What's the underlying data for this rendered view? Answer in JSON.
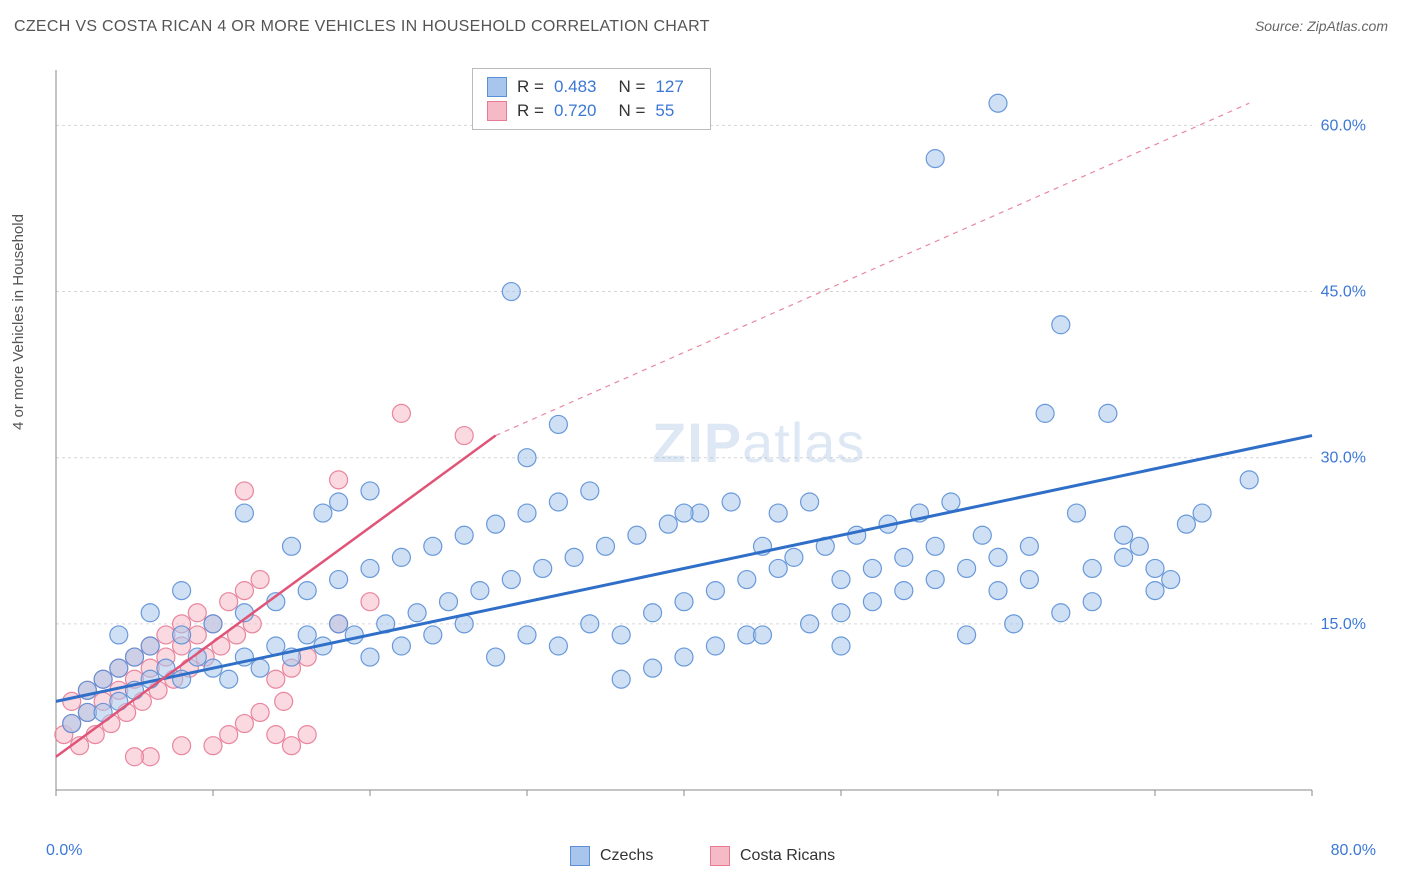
{
  "title": "CZECH VS COSTA RICAN 4 OR MORE VEHICLES IN HOUSEHOLD CORRELATION CHART",
  "source": "Source: ZipAtlas.com",
  "y_axis_label": "4 or more Vehicles in Household",
  "watermark_a": "ZIP",
  "watermark_b": "atlas",
  "legend_rn": {
    "row1": {
      "R_label": "R =",
      "R": "0.483",
      "N_label": "N =",
      "N": "127",
      "fill": "#a8c6ec",
      "stroke": "#5b8fd6"
    },
    "row2": {
      "R_label": "R =",
      "R": "0.720",
      "N_label": "N =",
      "N": "55",
      "fill": "#f6b9c6",
      "stroke": "#e77a95"
    }
  },
  "legend_bottom": {
    "series1": {
      "label": "Czechs",
      "fill": "#a8c6ec",
      "stroke": "#5b8fd6"
    },
    "series2": {
      "label": "Costa Ricans",
      "fill": "#f6b9c6",
      "stroke": "#e77a95"
    }
  },
  "chart": {
    "type": "scatter",
    "background_color": "#ffffff",
    "grid_color": "#d6d6d6",
    "axis_color": "#888888",
    "xlim": [
      0,
      80
    ],
    "ylim": [
      0,
      65
    ],
    "yticks": [
      15,
      30,
      45,
      60
    ],
    "ytick_labels": [
      "15.0%",
      "30.0%",
      "45.0%",
      "60.0%"
    ],
    "xtick_minor": [
      0,
      10,
      20,
      30,
      40,
      50,
      60,
      70,
      80
    ],
    "xtick_labels": {
      "left": "0.0%",
      "right": "80.0%"
    },
    "marker_radius": 9,
    "marker_opacity": 0.55,
    "series": {
      "czechs": {
        "color_fill": "#a8c6ec",
        "color_stroke": "#5b8fd6",
        "trend": {
          "x1": 0,
          "y1": 8,
          "x2": 80,
          "y2": 32,
          "color": "#2f6fc8",
          "width": 3,
          "dash_after_x": null
        },
        "points": [
          [
            1,
            6
          ],
          [
            2,
            7
          ],
          [
            3,
            7
          ],
          [
            2,
            9
          ],
          [
            4,
            8
          ],
          [
            3,
            10
          ],
          [
            5,
            9
          ],
          [
            4,
            11
          ],
          [
            6,
            10
          ],
          [
            5,
            12
          ],
          [
            7,
            11
          ],
          [
            8,
            10
          ],
          [
            6,
            13
          ],
          [
            9,
            12
          ],
          [
            10,
            11
          ],
          [
            8,
            14
          ],
          [
            11,
            10
          ],
          [
            12,
            12
          ],
          [
            10,
            15
          ],
          [
            13,
            11
          ],
          [
            14,
            13
          ],
          [
            12,
            16
          ],
          [
            15,
            12
          ],
          [
            16,
            14
          ],
          [
            14,
            17
          ],
          [
            17,
            13
          ],
          [
            18,
            15
          ],
          [
            16,
            18
          ],
          [
            19,
            14
          ],
          [
            20,
            12
          ],
          [
            18,
            19
          ],
          [
            21,
            15
          ],
          [
            22,
            13
          ],
          [
            20,
            20
          ],
          [
            23,
            16
          ],
          [
            24,
            14
          ],
          [
            22,
            21
          ],
          [
            25,
            17
          ],
          [
            26,
            15
          ],
          [
            24,
            22
          ],
          [
            27,
            18
          ],
          [
            28,
            12
          ],
          [
            26,
            23
          ],
          [
            29,
            19
          ],
          [
            30,
            14
          ],
          [
            28,
            24
          ],
          [
            31,
            20
          ],
          [
            32,
            13
          ],
          [
            30,
            25
          ],
          [
            33,
            21
          ],
          [
            34,
            15
          ],
          [
            32,
            26
          ],
          [
            35,
            22
          ],
          [
            36,
            14
          ],
          [
            34,
            27
          ],
          [
            37,
            23
          ],
          [
            38,
            16
          ],
          [
            36,
            10
          ],
          [
            39,
            24
          ],
          [
            40,
            17
          ],
          [
            38,
            11
          ],
          [
            41,
            25
          ],
          [
            42,
            18
          ],
          [
            40,
            12
          ],
          [
            43,
            26
          ],
          [
            44,
            19
          ],
          [
            42,
            13
          ],
          [
            45,
            22
          ],
          [
            46,
            20
          ],
          [
            44,
            14
          ],
          [
            47,
            21
          ],
          [
            48,
            15
          ],
          [
            46,
            25
          ],
          [
            49,
            22
          ],
          [
            50,
            16
          ],
          [
            48,
            26
          ],
          [
            51,
            23
          ],
          [
            52,
            17
          ],
          [
            50,
            19
          ],
          [
            53,
            24
          ],
          [
            54,
            18
          ],
          [
            52,
            20
          ],
          [
            55,
            25
          ],
          [
            56,
            19
          ],
          [
            54,
            21
          ],
          [
            57,
            26
          ],
          [
            58,
            20
          ],
          [
            56,
            22
          ],
          [
            59,
            23
          ],
          [
            60,
            21
          ],
          [
            58,
            14
          ],
          [
            61,
            15
          ],
          [
            62,
            22
          ],
          [
            60,
            18
          ],
          [
            63,
            34
          ],
          [
            64,
            42
          ],
          [
            62,
            19
          ],
          [
            65,
            25
          ],
          [
            66,
            20
          ],
          [
            64,
            16
          ],
          [
            67,
            34
          ],
          [
            68,
            21
          ],
          [
            66,
            17
          ],
          [
            69,
            22
          ],
          [
            70,
            18
          ],
          [
            68,
            23
          ],
          [
            71,
            19
          ],
          [
            72,
            24
          ],
          [
            70,
            20
          ],
          [
            73,
            25
          ],
          [
            76,
            28
          ],
          [
            60,
            62
          ],
          [
            56,
            57
          ],
          [
            29,
            45
          ],
          [
            32,
            33
          ],
          [
            30,
            30
          ],
          [
            20,
            27
          ],
          [
            18,
            26
          ],
          [
            12,
            25
          ],
          [
            8,
            18
          ],
          [
            6,
            16
          ],
          [
            4,
            14
          ],
          [
            17,
            25
          ],
          [
            15,
            22
          ],
          [
            40,
            25
          ],
          [
            45,
            14
          ],
          [
            50,
            13
          ]
        ]
      },
      "costa_ricans": {
        "color_fill": "#f6b9c6",
        "color_stroke": "#e77a95",
        "trend": {
          "x1": 0,
          "y1": 3,
          "x2": 28,
          "y2": 32,
          "dash_to_x": 76,
          "dash_to_y": 62,
          "color": "#e05577",
          "width": 2.5
        },
        "points": [
          [
            0.5,
            5
          ],
          [
            1,
            6
          ],
          [
            1.5,
            4
          ],
          [
            1,
            8
          ],
          [
            2,
            7
          ],
          [
            2.5,
            5
          ],
          [
            2,
            9
          ],
          [
            3,
            8
          ],
          [
            3.5,
            6
          ],
          [
            3,
            10
          ],
          [
            4,
            9
          ],
          [
            4.5,
            7
          ],
          [
            4,
            11
          ],
          [
            5,
            10
          ],
          [
            5.5,
            8
          ],
          [
            5,
            12
          ],
          [
            6,
            11
          ],
          [
            6.5,
            9
          ],
          [
            6,
            13
          ],
          [
            7,
            12
          ],
          [
            7.5,
            10
          ],
          [
            7,
            14
          ],
          [
            8,
            13
          ],
          [
            8.5,
            11
          ],
          [
            8,
            15
          ],
          [
            9,
            14
          ],
          [
            9.5,
            12
          ],
          [
            9,
            16
          ],
          [
            10,
            15
          ],
          [
            10.5,
            13
          ],
          [
            11,
            17
          ],
          [
            11.5,
            14
          ],
          [
            12,
            18
          ],
          [
            12.5,
            15
          ],
          [
            13,
            19
          ],
          [
            14,
            10
          ],
          [
            14.5,
            8
          ],
          [
            15,
            11
          ],
          [
            16,
            12
          ],
          [
            10,
            4
          ],
          [
            11,
            5
          ],
          [
            12,
            6
          ],
          [
            13,
            7
          ],
          [
            14,
            5
          ],
          [
            15,
            4
          ],
          [
            16,
            5
          ],
          [
            18,
            15
          ],
          [
            20,
            17
          ],
          [
            12,
            27
          ],
          [
            18,
            28
          ],
          [
            22,
            34
          ],
          [
            26,
            32
          ],
          [
            6,
            3
          ],
          [
            8,
            4
          ],
          [
            5,
            3
          ]
        ]
      }
    }
  }
}
